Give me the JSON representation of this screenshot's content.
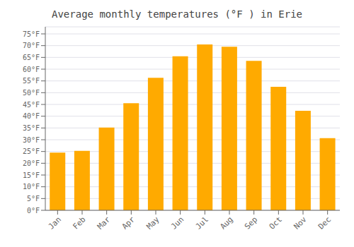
{
  "chart_data": {
    "type": "bar",
    "title": "Average monthly temperatures (°F ) in Erie",
    "categories": [
      "Jan",
      "Feb",
      "Mar",
      "Apr",
      "May",
      "Jun",
      "Jul",
      "Aug",
      "Sep",
      "Oct",
      "Nov",
      "Dec"
    ],
    "values": [
      24.5,
      25.3,
      35.2,
      45.5,
      56.3,
      65.5,
      70.5,
      69.5,
      63.5,
      52.5,
      42.3,
      30.7
    ],
    "color": "#FFAA00",
    "ylim": [
      0,
      78
    ],
    "yticks": [
      {
        "value": 0,
        "label": "0°F"
      },
      {
        "value": 5,
        "label": "5°F"
      },
      {
        "value": 10,
        "label": "10°F"
      },
      {
        "value": 15,
        "label": "15°F"
      },
      {
        "value": 20,
        "label": "20°F"
      },
      {
        "value": 25,
        "label": "25°F"
      },
      {
        "value": 30,
        "label": "30°F"
      },
      {
        "value": 35,
        "label": "35°F"
      },
      {
        "value": 40,
        "label": "40°F"
      },
      {
        "value": 45,
        "label": "45°F"
      },
      {
        "value": 50,
        "label": "50°F"
      },
      {
        "value": 55,
        "label": "55°F"
      },
      {
        "value": 60,
        "label": "60°F"
      },
      {
        "value": 65,
        "label": "65°F"
      },
      {
        "value": 70,
        "label": "70°F"
      },
      {
        "value": 75,
        "label": "75°F"
      }
    ],
    "grid": true
  }
}
